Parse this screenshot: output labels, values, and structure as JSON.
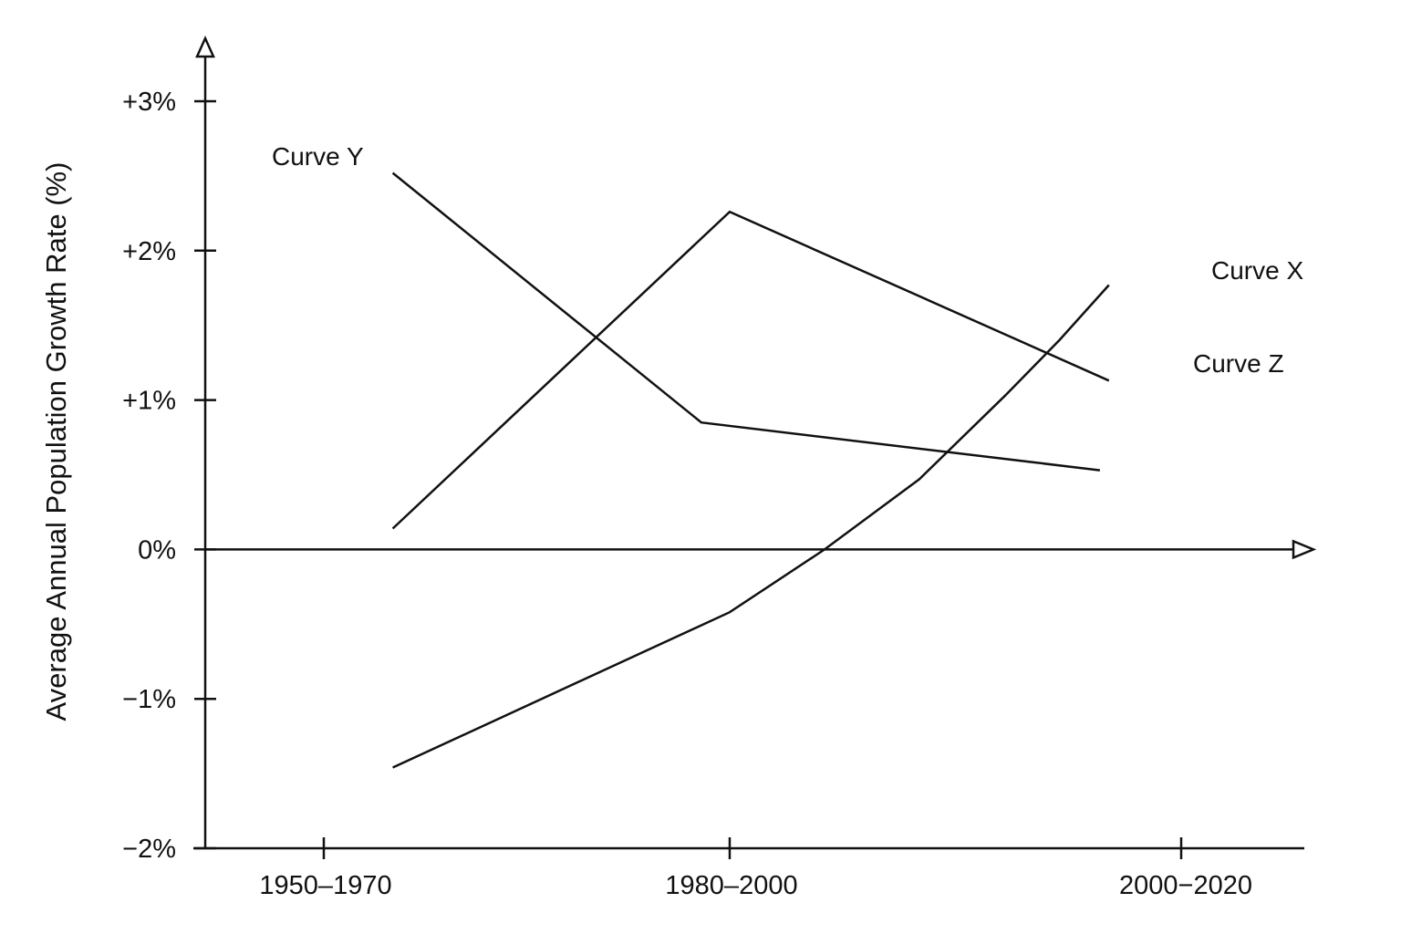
{
  "chart_data": {
    "type": "line",
    "title": "",
    "xlabel": "",
    "ylabel": "Average Annual Population Growth Rate (%)",
    "categories": [
      "1950–1970",
      "1980–2000",
      "2000−2020"
    ],
    "y_tick_labels": [
      "−2%",
      "−1%",
      "0%",
      "+1%",
      "+2%",
      "+3%"
    ],
    "y_tick_values": [
      -2,
      -1,
      0,
      1,
      2,
      3
    ],
    "ylim": [
      -2,
      3.4
    ],
    "grid": false,
    "legend": "none",
    "series": [
      {
        "name": "Curve X",
        "points": [
          {
            "x": 0.17,
            "y": -1.46
          },
          {
            "x": 1.0,
            "y": -0.42
          },
          {
            "x": 1.21,
            "y": 0.0
          },
          {
            "x": 1.42,
            "y": 0.47
          },
          {
            "x": 1.61,
            "y": 1.03
          },
          {
            "x": 1.73,
            "y": 1.4
          },
          {
            "x": 1.84,
            "y": 1.77
          }
        ]
      },
      {
        "name": "Curve Y",
        "points": [
          {
            "x": 0.17,
            "y": 2.52
          },
          {
            "x": 0.93,
            "y": 0.85
          },
          {
            "x": 1.82,
            "y": 0.53
          }
        ]
      },
      {
        "name": "Curve Z",
        "points": [
          {
            "x": 0.17,
            "y": 0.14
          },
          {
            "x": 1.0,
            "y": 2.26
          },
          {
            "x": 1.84,
            "y": 1.13
          }
        ]
      }
    ]
  }
}
